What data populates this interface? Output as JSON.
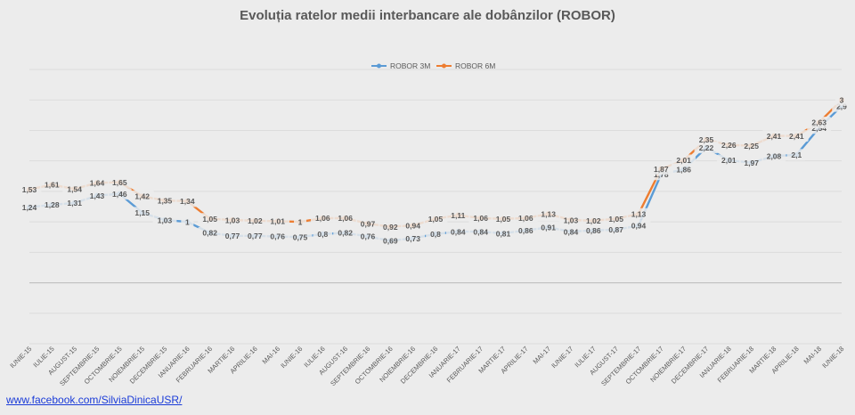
{
  "chart_data": {
    "type": "line",
    "title": "Evoluția ratelor medii interbancare ale dobânzilor (ROBOR)",
    "categories": [
      "IUNIE-15",
      "IULIE-15",
      "AUGUST-15",
      "SEPTEMBRIE-15",
      "OCTOMBRIE-15",
      "NOIEMBRIE-15",
      "DECEMBRIE-15",
      "IANUARIE-16",
      "FEBRUARIE-16",
      "MARTIE-16",
      "APRILIE-16",
      "MAI-16",
      "IUNIE-16",
      "IULIE-16",
      "AUGUST-16",
      "SEPTEMBRIE-16",
      "OCTOMBRIE-16",
      "NOIEMBRIE-16",
      "DECEMBRIE-16",
      "IANUARIE-17",
      "FEBRUARIE-17",
      "MARTIE-17",
      "APRILIE-17",
      "MAI-17",
      "IUNIE-17",
      "IULIE-17",
      "AUGUST-17",
      "SEPTEMBRIE-17",
      "OCTOMBRIE-17",
      "NOIEMBRIE-17",
      "DECEMBRIE-17",
      "IANUARIE-18",
      "FEBRUARIE-18",
      "MARTIE-18",
      "APRILIE-18",
      "MAI-18",
      "IUNIE-18"
    ],
    "series": [
      {
        "name": "ROBOR 3M",
        "color": "#5b9bd5",
        "values": [
          1.24,
          1.28,
          1.31,
          1.43,
          1.46,
          1.15,
          1.03,
          1,
          0.82,
          0.77,
          0.77,
          0.76,
          0.75,
          0.8,
          0.82,
          0.76,
          0.69,
          0.73,
          0.8,
          0.84,
          0.84,
          0.81,
          0.86,
          0.91,
          0.84,
          0.86,
          0.87,
          0.94,
          1.78,
          1.86,
          2.22,
          2.01,
          1.97,
          2.08,
          2.1,
          2.54,
          2.9
        ],
        "labels": [
          "1,24",
          "1,28",
          "1,31",
          "1,43",
          "1,46",
          "1,15",
          "1,03",
          "1",
          "0,82",
          "0,77",
          "0,77",
          "0,76",
          "0,75",
          "0,8",
          "0,82",
          "0,76",
          "0,69",
          "0,73",
          "0,8",
          "0,84",
          "0,84",
          "0,81",
          "0,86",
          "0,91",
          "0,84",
          "0,86",
          "0,87",
          "0,94",
          "1,78",
          "1,86",
          "2,22",
          "2,01",
          "1,97",
          "2,08",
          "2,1",
          "2,54",
          "2,9"
        ]
      },
      {
        "name": "ROBOR 6M",
        "color": "#ed7d31",
        "values": [
          1.53,
          1.61,
          1.54,
          1.64,
          1.65,
          1.42,
          1.35,
          1.34,
          1.05,
          1.03,
          1.02,
          1.01,
          1,
          1.06,
          1.06,
          0.97,
          0.92,
          0.94,
          1.05,
          1.11,
          1.06,
          1.05,
          1.06,
          1.13,
          1.03,
          1.02,
          1.05,
          1.13,
          1.87,
          2.01,
          2.35,
          2.26,
          2.25,
          2.41,
          2.41,
          2.63,
          3
        ],
        "labels": [
          "1,53",
          "1,61",
          "1,54",
          "1,64",
          "1,65",
          "1,42",
          "1,35",
          "1,34",
          "1,05",
          "1,03",
          "1,02",
          "1,01",
          "1",
          "1,06",
          "1,06",
          "0,97",
          "0,92",
          "0,94",
          "1,05",
          "1,11",
          "1,06",
          "1,05",
          "1,06",
          "1,13",
          "1,03",
          "1,02",
          "1,05",
          "1,13",
          "1,87",
          "2,01",
          "2,35",
          "2,26",
          "2,25",
          "2,41",
          "2,41",
          "2,63",
          "3"
        ]
      }
    ],
    "ylim": [
      -1,
      3.5
    ],
    "grid": true,
    "legend_position": "top-center"
  },
  "footer": {
    "link_text": "www.facebook.com/SilviaDinicaUSR/"
  }
}
